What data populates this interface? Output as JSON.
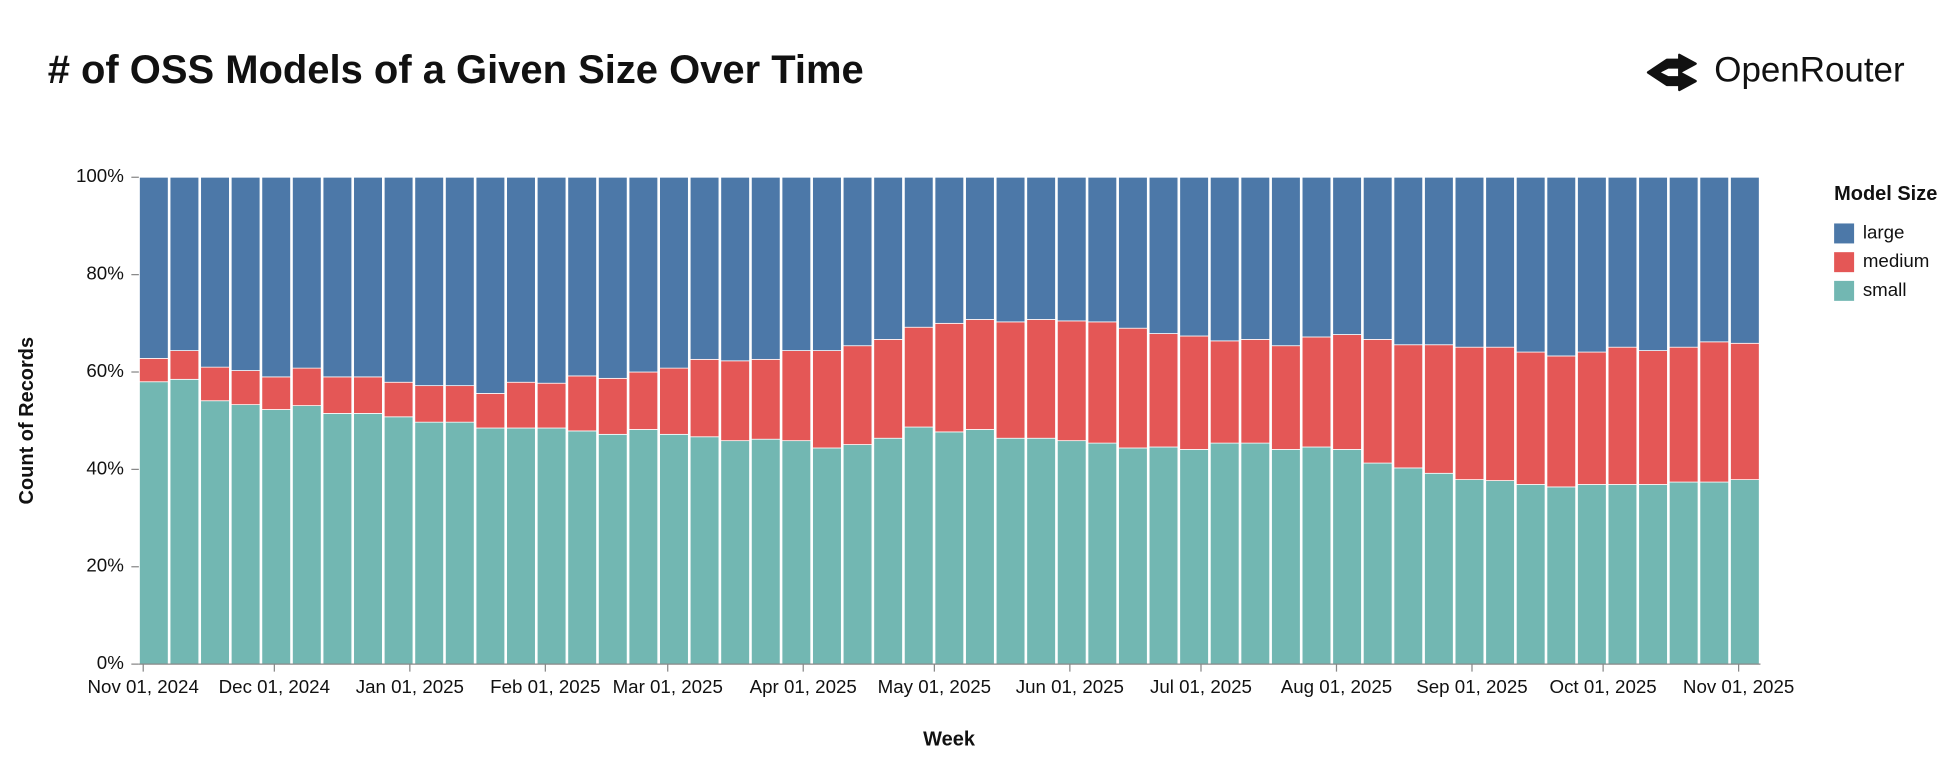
{
  "chart_data": {
    "type": "stacked_bar",
    "title": "# of OSS Models of a Given Size Over Time",
    "brand": "OpenRouter",
    "x_label": "Week",
    "y_label": "Count of Records",
    "legend_title": "Model Size",
    "x": [
      "2024-10-31",
      "2024-11-07",
      "2024-11-14",
      "2024-11-21",
      "2024-11-28",
      "2024-12-05",
      "2024-12-12",
      "2024-12-19",
      "2024-12-26",
      "2025-01-02",
      "2025-01-09",
      "2025-01-16",
      "2025-01-23",
      "2025-01-30",
      "2025-02-06",
      "2025-02-13",
      "2025-02-20",
      "2025-02-27",
      "2025-03-06",
      "2025-03-13",
      "2025-03-20",
      "2025-03-27",
      "2025-04-03",
      "2025-04-10",
      "2025-04-17",
      "2025-04-24",
      "2025-05-01",
      "2025-05-08",
      "2025-05-15",
      "2025-05-22",
      "2025-05-29",
      "2025-06-05",
      "2025-06-12",
      "2025-06-19",
      "2025-06-26",
      "2025-07-03",
      "2025-07-10",
      "2025-07-17",
      "2025-07-24",
      "2025-07-31",
      "2025-08-07",
      "2025-08-14",
      "2025-08-21",
      "2025-08-28",
      "2025-09-04",
      "2025-09-11",
      "2025-09-18",
      "2025-09-25",
      "2025-10-02",
      "2025-10-09",
      "2025-10-16",
      "2025-10-23",
      "2025-10-30"
    ],
    "series": [
      {
        "name": "small",
        "color": "#72b7b2",
        "values": [
          58.0,
          58.5,
          54.1,
          53.3,
          52.3,
          53.1,
          51.5,
          51.5,
          50.8,
          49.7,
          49.7,
          48.5,
          48.5,
          48.5,
          47.9,
          47.2,
          48.2,
          47.2,
          46.7,
          45.9,
          46.2,
          45.9,
          44.4,
          45.1,
          46.4,
          48.7,
          47.7,
          48.2,
          46.4,
          46.4,
          45.9,
          45.4,
          44.4,
          44.6,
          44.1,
          45.4,
          45.4,
          44.1,
          44.6,
          44.1,
          41.3,
          40.3,
          39.2,
          37.9,
          37.7,
          36.9,
          36.4,
          36.9,
          36.9,
          36.9,
          37.4,
          37.4,
          37.9
        ]
      },
      {
        "name": "medium",
        "color": "#e45756",
        "values": [
          4.8,
          5.9,
          6.9,
          7.0,
          6.7,
          7.7,
          7.5,
          7.5,
          7.1,
          7.5,
          7.5,
          7.1,
          9.4,
          9.2,
          11.3,
          11.5,
          11.8,
          13.6,
          15.9,
          16.4,
          16.4,
          18.5,
          20.0,
          20.3,
          20.3,
          20.5,
          22.3,
          22.6,
          23.9,
          24.4,
          24.6,
          24.9,
          24.6,
          23.3,
          23.3,
          21.0,
          21.3,
          21.3,
          22.6,
          23.6,
          25.4,
          25.3,
          26.4,
          27.2,
          27.4,
          27.2,
          26.9,
          27.2,
          28.2,
          27.5,
          27.7,
          28.8,
          28.0
        ]
      },
      {
        "name": "large",
        "color": "#4c78a8",
        "values": [
          37.2,
          35.6,
          39.0,
          39.7,
          41.0,
          39.2,
          41.0,
          41.0,
          42.1,
          42.8,
          42.8,
          44.4,
          42.1,
          42.3,
          40.8,
          41.3,
          40.0,
          39.2,
          37.4,
          37.7,
          37.4,
          35.6,
          35.6,
          34.6,
          33.3,
          30.8,
          30.0,
          29.2,
          29.7,
          29.2,
          29.5,
          29.7,
          31.0,
          32.1,
          32.6,
          33.6,
          33.3,
          34.6,
          32.8,
          32.3,
          33.3,
          34.4,
          34.4,
          34.9,
          34.9,
          35.9,
          36.7,
          35.9,
          34.9,
          35.6,
          34.9,
          33.8,
          34.1
        ]
      }
    ],
    "bar_days": 7,
    "xlim": [
      "2024-10-31",
      "2025-11-06"
    ],
    "xticks": [
      {
        "value": "2024-11-01",
        "label": "Nov 01, 2024"
      },
      {
        "value": "2024-12-01",
        "label": "Dec 01, 2024"
      },
      {
        "value": "2025-01-01",
        "label": "Jan 01, 2025"
      },
      {
        "value": "2025-02-01",
        "label": "Feb 01, 2025"
      },
      {
        "value": "2025-03-01",
        "label": "Mar 01, 2025"
      },
      {
        "value": "2025-04-01",
        "label": "Apr 01, 2025"
      },
      {
        "value": "2025-05-01",
        "label": "May 01, 2025"
      },
      {
        "value": "2025-06-01",
        "label": "Jun 01, 2025"
      },
      {
        "value": "2025-07-01",
        "label": "Jul 01, 2025"
      },
      {
        "value": "2025-08-01",
        "label": "Aug 01, 2025"
      },
      {
        "value": "2025-09-01",
        "label": "Sep 01, 2025"
      },
      {
        "value": "2025-10-01",
        "label": "Oct 01, 2025"
      },
      {
        "value": "2025-11-01",
        "label": "Nov 01, 2025"
      }
    ],
    "ylim": [
      0,
      100
    ],
    "yticks": [
      {
        "value": 0,
        "label": "0%"
      },
      {
        "value": 20,
        "label": "20%"
      },
      {
        "value": 40,
        "label": "40%"
      },
      {
        "value": 60,
        "label": "60%"
      },
      {
        "value": 80,
        "label": "80%"
      },
      {
        "value": 100,
        "label": "100%"
      }
    ],
    "legend": "right"
  }
}
